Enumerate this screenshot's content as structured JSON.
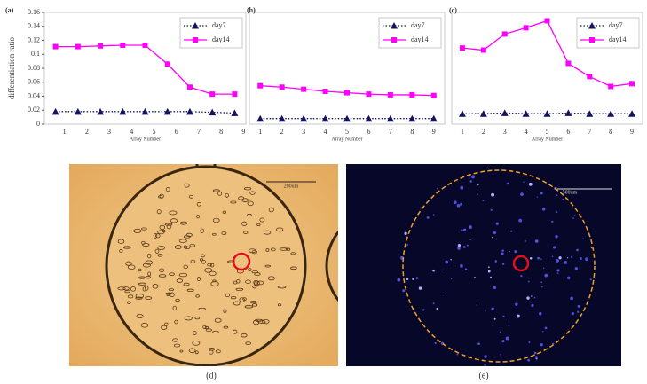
{
  "chart_data": [
    {
      "type": "line",
      "label": "(a)",
      "y_label": "differentiation ratio",
      "x_label": "Array Number",
      "categories": [
        "1",
        "2",
        "3",
        "4",
        "5",
        "6",
        "7",
        "8",
        "9"
      ],
      "series": [
        {
          "name": "day7",
          "color": "#14145e",
          "marker": "triangle",
          "linestyle": "dotted",
          "values": [
            0.018,
            0.018,
            0.018,
            0.018,
            0.018,
            0.018,
            0.018,
            0.017,
            0.016
          ]
        },
        {
          "name": "day14",
          "color": "#ff00ff",
          "marker": "square",
          "linestyle": "solid",
          "values": [
            0.111,
            0.111,
            0.112,
            0.113,
            0.113,
            0.086,
            0.053,
            0.043,
            0.043
          ]
        }
      ],
      "ylim": [
        0,
        0.16
      ],
      "yticks": [
        0,
        0.02,
        0.04,
        0.06,
        0.08,
        0.1,
        0.12,
        0.14,
        0.16
      ],
      "legend": "upper right"
    },
    {
      "type": "line",
      "label": "(b)",
      "x_label": "Array Number",
      "categories": [
        "1",
        "2",
        "3",
        "4",
        "5",
        "6",
        "7",
        "8",
        "9"
      ],
      "series": [
        {
          "name": "day7",
          "color": "#14145e",
          "marker": "triangle",
          "linestyle": "dotted",
          "values": [
            0.008,
            0.008,
            0.008,
            0.008,
            0.008,
            0.008,
            0.008,
            0.008,
            0.008
          ]
        },
        {
          "name": "day14",
          "color": "#ff00ff",
          "marker": "square",
          "linestyle": "solid",
          "values": [
            0.055,
            0.053,
            0.05,
            0.047,
            0.045,
            0.043,
            0.042,
            0.042,
            0.041
          ]
        }
      ],
      "ylim": [
        0,
        0.16
      ],
      "legend": "upper right"
    },
    {
      "type": "line",
      "label": "(c)",
      "x_label": "Array Number",
      "categories": [
        "1",
        "2",
        "3",
        "4",
        "5",
        "6",
        "7",
        "8",
        "9"
      ],
      "series": [
        {
          "name": "day7",
          "color": "#14145e",
          "marker": "triangle",
          "linestyle": "dotted",
          "values": [
            0.015,
            0.015,
            0.016,
            0.015,
            0.015,
            0.016,
            0.015,
            0.015,
            0.015
          ]
        },
        {
          "name": "day14",
          "color": "#ff00ff",
          "marker": "square",
          "linestyle": "solid",
          "values": [
            0.109,
            0.106,
            0.129,
            0.138,
            0.148,
            0.087,
            0.068,
            0.054,
            0.058
          ]
        }
      ],
      "ylim": [
        0,
        0.16
      ],
      "legend": "upper right"
    }
  ],
  "images": [
    {
      "label": "(d)",
      "scale_bar": "200um"
    },
    {
      "label": "(e)",
      "scale_bar": "500um"
    }
  ]
}
